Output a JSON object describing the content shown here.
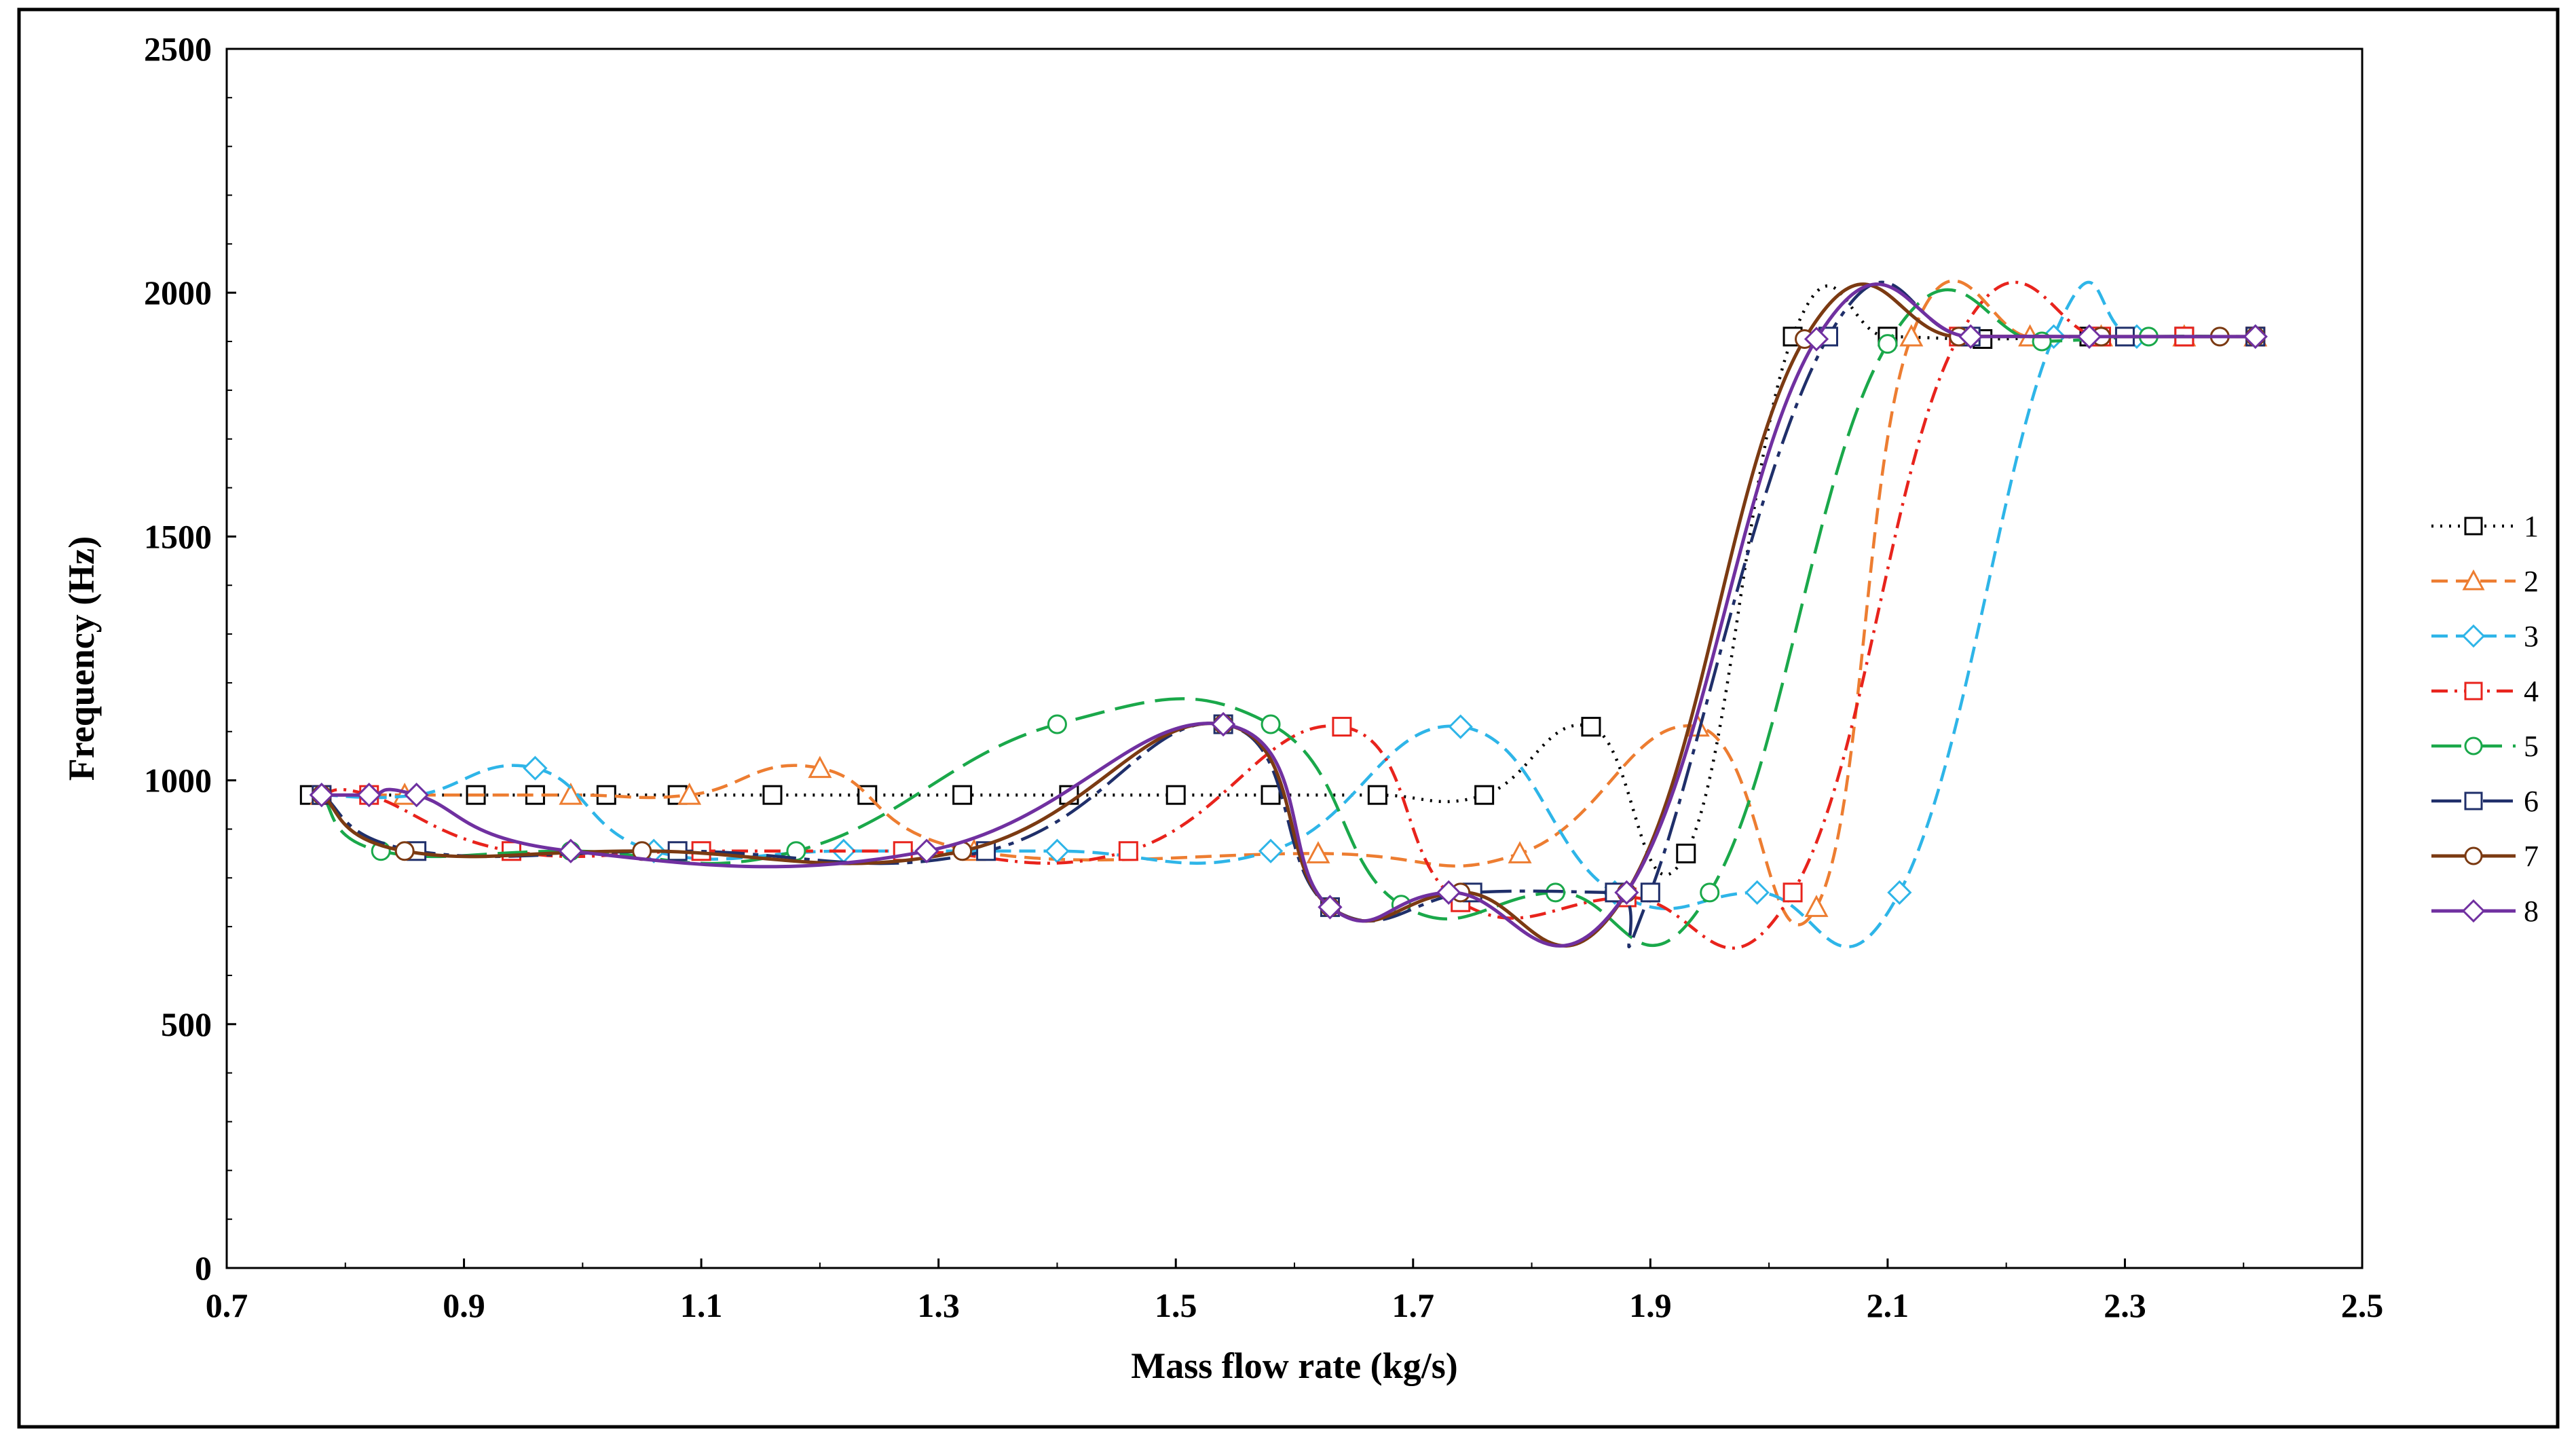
{
  "chart_data": {
    "type": "line",
    "title": "",
    "xlabel": "Mass flow rate (kg/s)",
    "ylabel": "Frequency (Hz)",
    "xlim": [
      0.7,
      2.5
    ],
    "ylim": [
      0,
      2500
    ],
    "xticks": [
      0.7,
      0.9,
      1.1,
      1.3,
      1.5,
      1.7,
      1.9,
      2.1,
      2.3,
      2.5
    ],
    "yticks": [
      0,
      500,
      1000,
      1500,
      2000,
      2500
    ],
    "xtick_labels": [
      "0.7",
      "0.9",
      "1.1",
      "1.3",
      "1.5",
      "1.7",
      "1.9",
      "2.1",
      "2.3",
      "2.5"
    ],
    "ytick_labels": [
      "0",
      "500",
      "1000",
      "1500",
      "2000",
      "2500"
    ],
    "grid": false,
    "legend_position": "right",
    "series": [
      {
        "name": "1",
        "color": "#000000",
        "dash": "dot",
        "marker": "square",
        "x": [
          0.77,
          0.91,
          0.96,
          1.02,
          1.08,
          1.16,
          1.24,
          1.32,
          1.41,
          1.5,
          1.58,
          1.67,
          1.76,
          1.85,
          1.93,
          2.02,
          2.1,
          2.18,
          2.27,
          2.35,
          2.41
        ],
        "y": [
          970,
          970,
          970,
          970,
          970,
          970,
          970,
          970,
          970,
          970,
          970,
          970,
          970,
          1110,
          850,
          1910,
          1910,
          1905,
          1910,
          1910,
          1910
        ]
      },
      {
        "name": "2",
        "color": "#ED7D31",
        "dash": "dash",
        "marker": "triangle",
        "x": [
          0.78,
          0.85,
          0.99,
          1.09,
          1.2,
          1.33,
          1.62,
          1.79,
          1.94,
          2.04,
          2.12,
          2.22,
          2.28,
          2.35,
          2.41
        ],
        "y": [
          970,
          970,
          970,
          970,
          1025,
          855,
          850,
          850,
          1110,
          740,
          1910,
          1910,
          1910,
          1910,
          1910
        ]
      },
      {
        "name": "3",
        "color": "#2EB5E8",
        "dash": "dash",
        "marker": "diamond",
        "x": [
          0.78,
          0.86,
          0.96,
          1.06,
          1.22,
          1.4,
          1.58,
          1.74,
          1.87,
          1.99,
          2.11,
          2.24,
          2.31,
          2.41
        ],
        "y": [
          970,
          970,
          1025,
          855,
          855,
          855,
          855,
          1110,
          770,
          770,
          770,
          1910,
          1910,
          1910
        ]
      },
      {
        "name": "4",
        "color": "#E8231C",
        "dash": "dashdot",
        "marker": "square",
        "x": [
          0.78,
          0.82,
          0.94,
          1.1,
          1.27,
          1.46,
          1.64,
          1.74,
          1.88,
          2.02,
          2.16,
          2.28,
          2.35,
          2.41
        ],
        "y": [
          970,
          970,
          855,
          855,
          855,
          855,
          1110,
          750,
          760,
          770,
          1910,
          1910,
          1910,
          1910
        ]
      },
      {
        "name": "5",
        "color": "#1AA84A",
        "dash": "longdash",
        "marker": "circle",
        "x": [
          0.78,
          0.83,
          0.99,
          1.18,
          1.4,
          1.58,
          1.69,
          1.82,
          1.95,
          2.1,
          2.23,
          2.32,
          2.41
        ],
        "y": [
          970,
          855,
          855,
          855,
          1115,
          1115,
          745,
          770,
          770,
          1895,
          1900,
          1910,
          1910
        ]
      },
      {
        "name": "6",
        "color": "#1F2F6A",
        "dash": "longdashdot",
        "marker": "square",
        "x": [
          0.78,
          0.86,
          1.08,
          1.34,
          1.54,
          1.63,
          1.75,
          1.87,
          1.9,
          2.05,
          2.17,
          2.3,
          2.41
        ],
        "y": [
          970,
          855,
          855,
          855,
          1115,
          740,
          770,
          770,
          770,
          1910,
          1910,
          1910,
          1910
        ]
      },
      {
        "name": "7",
        "color": "#7B3A12",
        "dash": "solid",
        "marker": "circle",
        "x": [
          0.78,
          0.85,
          1.05,
          1.32,
          1.54,
          1.63,
          1.74,
          1.88,
          2.03,
          2.16,
          2.28,
          2.38,
          2.41
        ],
        "y": [
          970,
          855,
          855,
          855,
          1115,
          740,
          770,
          770,
          1905,
          1910,
          1910,
          1910,
          1910
        ]
      },
      {
        "name": "8",
        "color": "#7030A0",
        "dash": "solid",
        "marker": "diamond",
        "x": [
          0.78,
          0.82,
          0.86,
          0.99,
          1.29,
          1.54,
          1.63,
          1.73,
          1.88,
          2.04,
          2.17,
          2.27,
          2.41
        ],
        "y": [
          970,
          970,
          970,
          855,
          855,
          1115,
          740,
          770,
          770,
          1905,
          1910,
          1910,
          1910
        ]
      }
    ]
  }
}
